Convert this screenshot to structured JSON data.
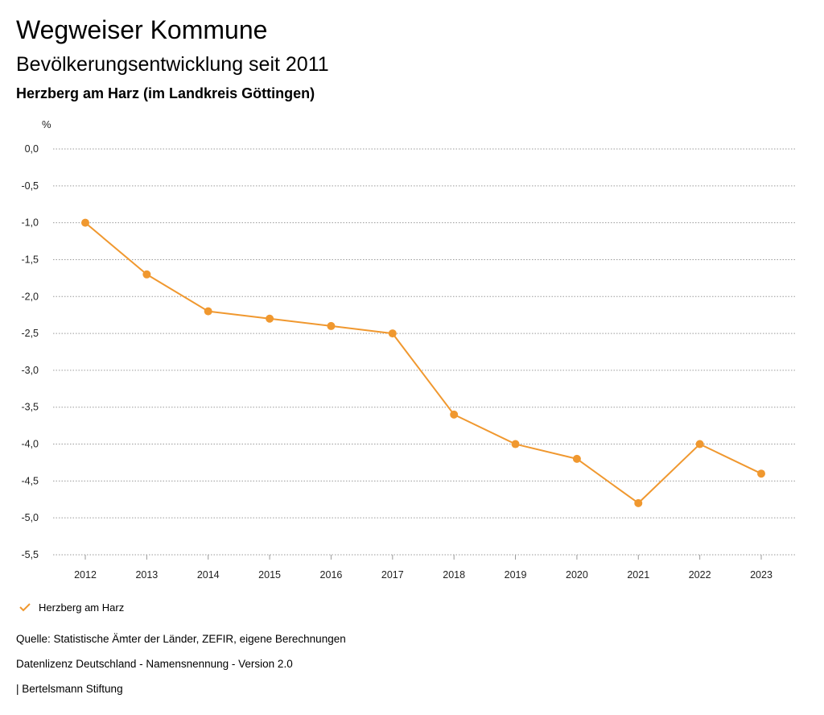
{
  "header": {
    "title": "Wegweiser Kommune",
    "subtitle": "Bevölkerungsentwicklung seit 2011",
    "region": "Herzberg am Harz (im Landkreis Göttingen)"
  },
  "chart_data": {
    "type": "line",
    "ylabel": "%",
    "ylim": [
      -5.5,
      0
    ],
    "yticks": [
      0,
      -0.5,
      -1,
      -1.5,
      -2,
      -2.5,
      -3,
      -3.5,
      -4,
      -4.5,
      -5,
      -5.5
    ],
    "ytick_labels": [
      "0,0",
      "-0,5",
      "-1,0",
      "-1,5",
      "-2,0",
      "-2,5",
      "-3,0",
      "-3,5",
      "-4,0",
      "-4,5",
      "-5,0",
      "-5,5"
    ],
    "categories": [
      "2012",
      "2013",
      "2014",
      "2015",
      "2016",
      "2017",
      "2018",
      "2019",
      "2020",
      "2021",
      "2022",
      "2023"
    ],
    "series": [
      {
        "name": "Herzberg am Harz",
        "color": "#f0982f",
        "values": [
          -1.0,
          -1.7,
          -2.2,
          -2.3,
          -2.4,
          -2.5,
          -3.6,
          -4.0,
          -4.2,
          -4.8,
          -4.0,
          -4.4
        ]
      }
    ],
    "grid": true,
    "legend": "bottom-left"
  },
  "footer": {
    "source": "Quelle: Statistische Ämter der Länder, ZEFIR, eigene Berechnungen",
    "license": "Datenlizenz Deutschland - Namensnennung - Version 2.0",
    "publisher": "| Bertelsmann Stiftung"
  }
}
